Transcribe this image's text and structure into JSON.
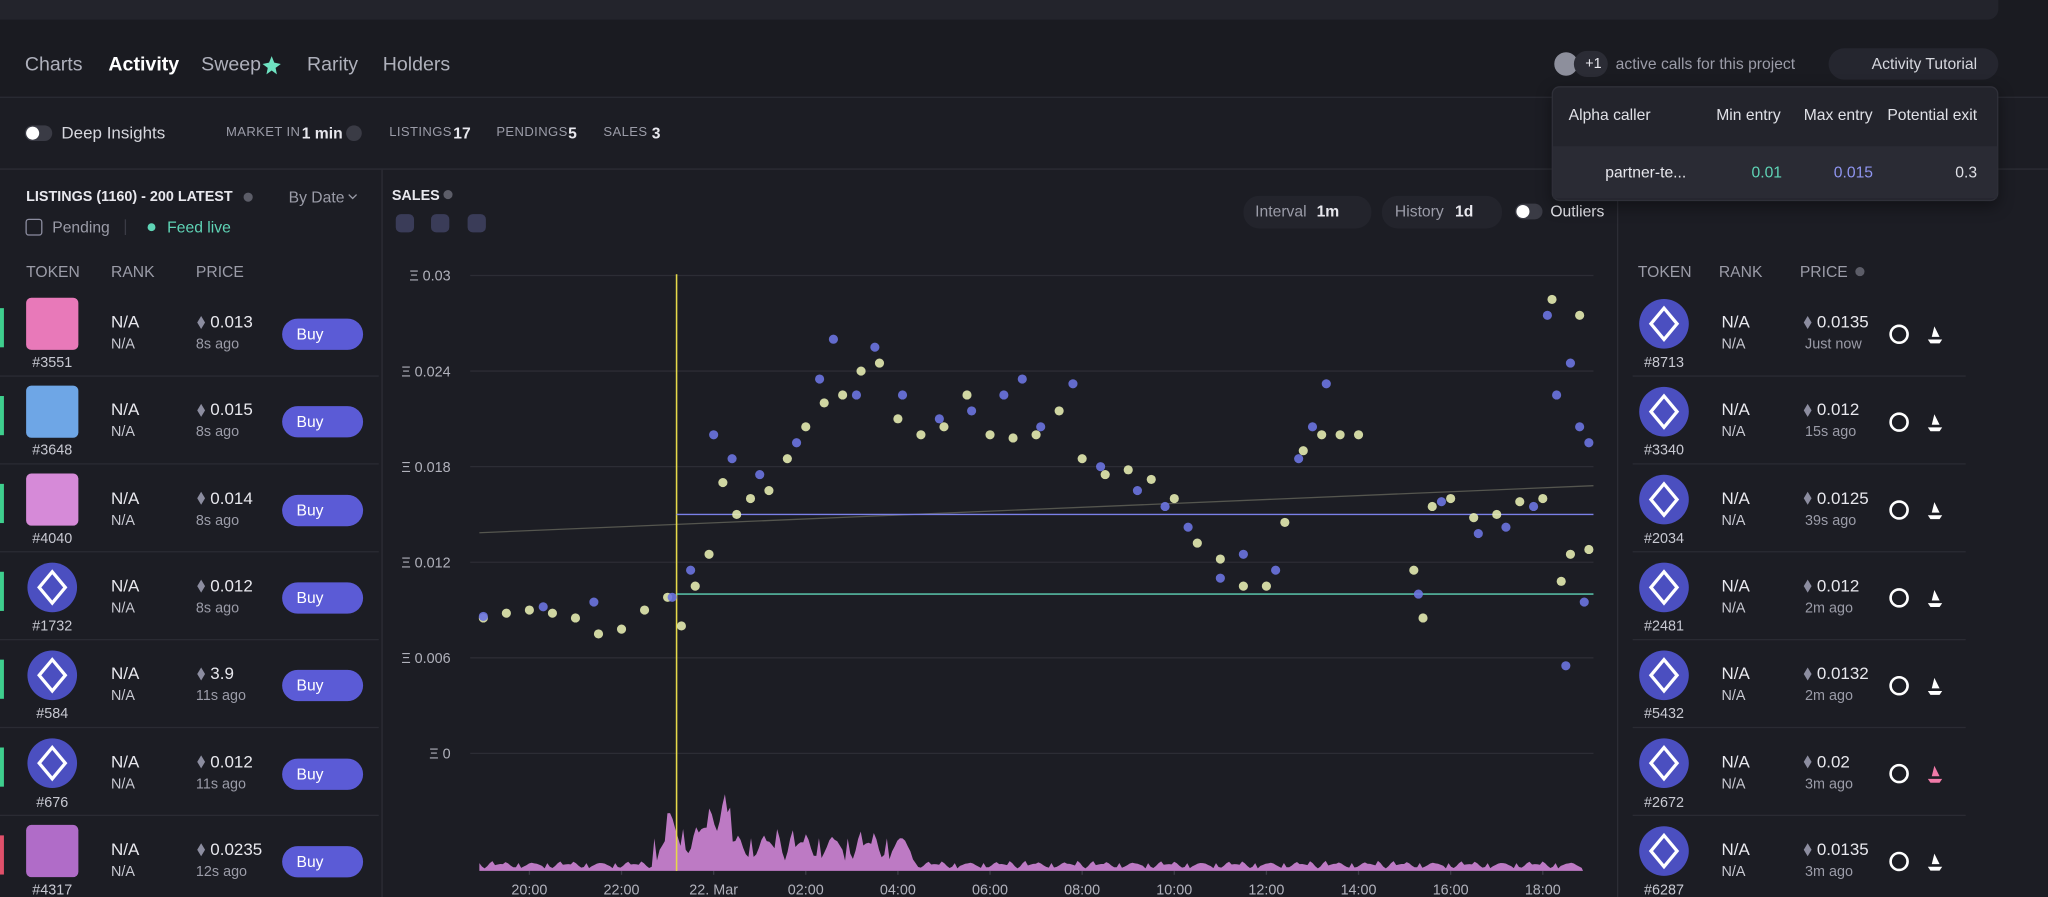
{
  "tabs": [
    "Charts",
    "Activity",
    "Sweep",
    "Rarity",
    "Holders"
  ],
  "active_calls": {
    "count": "+1",
    "text": "active calls for this project"
  },
  "tutorial": "Activity Tutorial",
  "popup": {
    "headers": [
      "Alpha caller",
      "Min entry",
      "Max entry",
      "Potential exit"
    ],
    "rows": [
      [
        "partner-te...",
        0.01,
        0.015,
        0.3
      ]
    ]
  },
  "toolbar": {
    "deep_insights": "Deep Insights",
    "market_in_label": "MARKET IN",
    "market_in_value": "1 min",
    "listings_label": "LISTINGS",
    "listings": 17,
    "pendings_label": "PENDINGS",
    "pendings": 5,
    "sales_label": "SALES",
    "sales": 3
  },
  "listings": {
    "title": "LISTINGS (1160) - 200 LATEST",
    "sort": "By Date",
    "pending": "Pending",
    "feed": "Feed live",
    "columns": [
      "TOKEN",
      "RANK",
      "PRICE"
    ],
    "buy": "Buy",
    "rows": [
      [
        "#3551",
        "N/A",
        "N/A",
        "0.013",
        "8s ago"
      ],
      [
        "#3648",
        "N/A",
        "N/A",
        "0.015",
        "8s ago"
      ],
      [
        "#4040",
        "N/A",
        "N/A",
        "0.014",
        "8s ago"
      ],
      [
        "#1732",
        "N/A",
        "N/A",
        "0.012",
        "8s ago"
      ],
      [
        "#584",
        "N/A",
        "N/A",
        "3.9",
        "11s ago"
      ],
      [
        "#676",
        "N/A",
        "N/A",
        "0.012",
        "11s ago"
      ],
      [
        "#4317",
        "N/A",
        "N/A",
        "0.0235",
        "12s ago"
      ]
    ]
  },
  "sales_panel": {
    "title": "SALES",
    "interval_label": "Interval",
    "interval": "1m",
    "history_label": "History",
    "history": "1d",
    "outliers": "Outliers"
  },
  "sales_chart": {
    "type": "scatter",
    "grid": true,
    "ylim": [
      0,
      0.03
    ],
    "yticks": [
      {
        "value": 0.03,
        "label": "Ξ 0.03"
      },
      {
        "value": 0.024,
        "label": "Ξ 0.024"
      },
      {
        "value": 0.018,
        "label": "Ξ 0.018"
      },
      {
        "value": 0.012,
        "label": "Ξ 0.012"
      },
      {
        "value": 0.006,
        "label": "Ξ 0.006"
      },
      {
        "value": 0,
        "label": "Ξ 0"
      }
    ],
    "xlim": [
      18.8,
      43.1
    ],
    "xticks": [
      {
        "value": 20,
        "label": "20:00"
      },
      {
        "value": 22,
        "label": "22:00"
      },
      {
        "value": 24,
        "label": "22. Mar"
      },
      {
        "value": 26,
        "label": "02:00"
      },
      {
        "value": 28,
        "label": "04:00"
      },
      {
        "value": 30,
        "label": "06:00"
      },
      {
        "value": 32,
        "label": "08:00"
      },
      {
        "value": 34,
        "label": "10:00"
      },
      {
        "value": 36,
        "label": "12:00"
      },
      {
        "value": 38,
        "label": "14:00"
      },
      {
        "value": 40,
        "label": "16:00"
      },
      {
        "value": 42,
        "label": "18:00"
      }
    ],
    "series": [
      {
        "color": "#e4ebb0",
        "x": [
          19.0,
          19.5,
          20.0,
          20.5,
          21.0,
          21.5,
          22.0,
          22.5,
          23.0,
          23.3,
          23.6,
          23.9,
          24.2,
          24.5,
          24.8,
          25.2,
          25.6,
          26.0,
          26.4,
          26.8,
          27.2,
          27.6,
          28.0,
          28.5,
          29.0,
          29.5,
          30.0,
          30.5,
          31.0,
          31.5,
          32.0,
          32.5,
          33.0,
          33.5,
          34.0,
          34.5,
          35.0,
          35.5,
          36.0,
          36.4,
          36.8,
          37.2,
          37.6,
          38.0,
          39.2,
          39.4,
          39.6,
          40.0,
          40.5,
          41.0,
          41.5,
          42.0,
          42.2,
          42.4,
          42.6,
          42.8,
          43.0
        ],
        "values": [
          0.0085,
          0.0088,
          0.009,
          0.0088,
          0.0085,
          0.0075,
          0.0078,
          0.009,
          0.0098,
          0.008,
          0.0105,
          0.0125,
          0.017,
          0.015,
          0.016,
          0.0165,
          0.0185,
          0.0205,
          0.022,
          0.0225,
          0.024,
          0.0245,
          0.021,
          0.02,
          0.0205,
          0.0225,
          0.02,
          0.0198,
          0.02,
          0.0215,
          0.0185,
          0.0175,
          0.0178,
          0.0172,
          0.016,
          0.0132,
          0.0122,
          0.0105,
          0.0105,
          0.0145,
          0.019,
          0.02,
          0.02,
          0.02,
          0.0115,
          0.0085,
          0.0155,
          0.016,
          0.0148,
          0.015,
          0.0158,
          0.016,
          0.0285,
          0.0108,
          0.0125,
          0.0275,
          0.0128
        ]
      },
      {
        "color": "#6b74e0",
        "x": [
          19.0,
          20.3,
          21.4,
          23.1,
          23.5,
          24.0,
          24.4,
          25.0,
          25.8,
          26.3,
          26.6,
          27.1,
          27.5,
          28.1,
          28.9,
          29.6,
          30.3,
          30.7,
          31.1,
          31.8,
          32.4,
          33.2,
          33.8,
          34.3,
          35.0,
          35.5,
          36.2,
          36.7,
          37.0,
          37.3,
          39.3,
          39.8,
          40.6,
          41.2,
          41.8,
          42.1,
          42.3,
          42.5,
          42.6,
          42.8,
          42.9,
          43.0
        ],
        "values": [
          0.0086,
          0.0092,
          0.0095,
          0.0098,
          0.0115,
          0.02,
          0.0185,
          0.0175,
          0.0195,
          0.0235,
          0.026,
          0.0225,
          0.0255,
          0.0225,
          0.021,
          0.0215,
          0.0225,
          0.0235,
          0.0205,
          0.0232,
          0.018,
          0.0165,
          0.0155,
          0.0142,
          0.011,
          0.0125,
          0.0115,
          0.0185,
          0.0205,
          0.0232,
          0.01,
          0.0158,
          0.0138,
          0.0142,
          0.0155,
          0.0275,
          0.0225,
          0.0055,
          0.0245,
          0.0205,
          0.0095,
          0.0195
        ]
      }
    ]
  },
  "sales_list": {
    "columns": [
      "TOKEN",
      "RANK",
      "PRICE"
    ],
    "rows": [
      [
        "#8713",
        "N/A",
        "N/A",
        "0.0135",
        "Just now"
      ],
      [
        "#3340",
        "N/A",
        "N/A",
        "0.012",
        "15s ago"
      ],
      [
        "#2034",
        "N/A",
        "N/A",
        "0.0125",
        "39s ago"
      ],
      [
        "#2481",
        "N/A",
        "N/A",
        "0.012",
        "2m ago"
      ],
      [
        "#5432",
        "N/A",
        "N/A",
        "0.0132",
        "2m ago"
      ],
      [
        "#2672",
        "N/A",
        "N/A",
        "0.02",
        "3m ago"
      ],
      [
        "#6287",
        "N/A",
        "N/A",
        "0.0135",
        "3m ago"
      ]
    ]
  }
}
